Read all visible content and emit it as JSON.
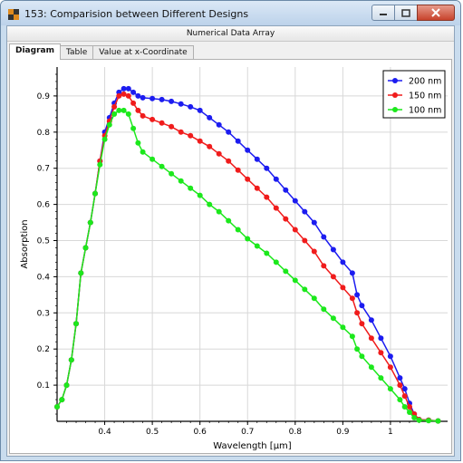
{
  "window": {
    "title": "153: Comparision between Different Designs"
  },
  "subheader": "Numerical Data Array",
  "tabs": [
    {
      "label": "Diagram"
    },
    {
      "label": "Table"
    },
    {
      "label": "Value at x-Coordinate"
    }
  ],
  "chart_data": {
    "type": "line",
    "title": "",
    "xlabel": "Wavelength [µm]",
    "ylabel": "Absorption",
    "xlim": [
      0.3,
      1.12
    ],
    "ylim": [
      0,
      0.98
    ],
    "xticks": [
      "0.4",
      "0.5",
      "0.6",
      "0.7",
      "0.8",
      "0.9",
      "1"
    ],
    "yticks": [
      "0.1",
      "0.2",
      "0.3",
      "0.4",
      "0.5",
      "0.6",
      "0.7",
      "0.8",
      "0.9"
    ],
    "grid": true,
    "legend": "top-right",
    "series": [
      {
        "name": "200 nm",
        "color": "#1c1cf0",
        "points": [
          [
            0.3,
            0.04
          ],
          [
            0.31,
            0.06
          ],
          [
            0.32,
            0.1
          ],
          [
            0.33,
            0.17
          ],
          [
            0.34,
            0.27
          ],
          [
            0.35,
            0.41
          ],
          [
            0.36,
            0.48
          ],
          [
            0.37,
            0.55
          ],
          [
            0.38,
            0.63
          ],
          [
            0.39,
            0.72
          ],
          [
            0.4,
            0.8
          ],
          [
            0.41,
            0.84
          ],
          [
            0.42,
            0.88
          ],
          [
            0.43,
            0.91
          ],
          [
            0.44,
            0.92
          ],
          [
            0.45,
            0.92
          ],
          [
            0.46,
            0.91
          ],
          [
            0.47,
            0.9
          ],
          [
            0.48,
            0.895
          ],
          [
            0.5,
            0.893
          ],
          [
            0.52,
            0.89
          ],
          [
            0.54,
            0.885
          ],
          [
            0.56,
            0.878
          ],
          [
            0.58,
            0.87
          ],
          [
            0.6,
            0.86
          ],
          [
            0.62,
            0.84
          ],
          [
            0.64,
            0.82
          ],
          [
            0.66,
            0.8
          ],
          [
            0.68,
            0.775
          ],
          [
            0.7,
            0.75
          ],
          [
            0.72,
            0.725
          ],
          [
            0.74,
            0.7
          ],
          [
            0.76,
            0.67
          ],
          [
            0.78,
            0.64
          ],
          [
            0.8,
            0.61
          ],
          [
            0.82,
            0.58
          ],
          [
            0.84,
            0.55
          ],
          [
            0.86,
            0.51
          ],
          [
            0.88,
            0.475
          ],
          [
            0.9,
            0.44
          ],
          [
            0.92,
            0.41
          ],
          [
            0.93,
            0.35
          ],
          [
            0.94,
            0.32
          ],
          [
            0.96,
            0.28
          ],
          [
            0.98,
            0.23
          ],
          [
            1.0,
            0.18
          ],
          [
            1.02,
            0.12
          ],
          [
            1.03,
            0.09
          ],
          [
            1.04,
            0.05
          ],
          [
            1.05,
            0.02
          ],
          [
            1.06,
            0.005
          ],
          [
            1.08,
            0.003
          ],
          [
            1.1,
            0.001
          ]
        ]
      },
      {
        "name": "150 nm",
        "color": "#f01c1c",
        "points": [
          [
            0.3,
            0.04
          ],
          [
            0.31,
            0.06
          ],
          [
            0.32,
            0.1
          ],
          [
            0.33,
            0.17
          ],
          [
            0.34,
            0.27
          ],
          [
            0.35,
            0.41
          ],
          [
            0.36,
            0.48
          ],
          [
            0.37,
            0.55
          ],
          [
            0.38,
            0.63
          ],
          [
            0.39,
            0.72
          ],
          [
            0.4,
            0.79
          ],
          [
            0.41,
            0.83
          ],
          [
            0.42,
            0.87
          ],
          [
            0.43,
            0.9
          ],
          [
            0.44,
            0.905
          ],
          [
            0.45,
            0.9
          ],
          [
            0.46,
            0.88
          ],
          [
            0.47,
            0.86
          ],
          [
            0.48,
            0.845
          ],
          [
            0.5,
            0.835
          ],
          [
            0.52,
            0.825
          ],
          [
            0.54,
            0.815
          ],
          [
            0.56,
            0.8
          ],
          [
            0.58,
            0.79
          ],
          [
            0.6,
            0.775
          ],
          [
            0.62,
            0.76
          ],
          [
            0.64,
            0.74
          ],
          [
            0.66,
            0.72
          ],
          [
            0.68,
            0.695
          ],
          [
            0.7,
            0.67
          ],
          [
            0.72,
            0.645
          ],
          [
            0.74,
            0.62
          ],
          [
            0.76,
            0.59
          ],
          [
            0.78,
            0.56
          ],
          [
            0.8,
            0.53
          ],
          [
            0.82,
            0.5
          ],
          [
            0.84,
            0.47
          ],
          [
            0.86,
            0.43
          ],
          [
            0.88,
            0.4
          ],
          [
            0.9,
            0.37
          ],
          [
            0.92,
            0.34
          ],
          [
            0.93,
            0.3
          ],
          [
            0.94,
            0.27
          ],
          [
            0.96,
            0.23
          ],
          [
            0.98,
            0.19
          ],
          [
            1.0,
            0.15
          ],
          [
            1.02,
            0.1
          ],
          [
            1.03,
            0.07
          ],
          [
            1.04,
            0.04
          ],
          [
            1.05,
            0.02
          ],
          [
            1.06,
            0.005
          ],
          [
            1.08,
            0.003
          ],
          [
            1.1,
            0.001
          ]
        ]
      },
      {
        "name": "100 nm",
        "color": "#1ce81c",
        "points": [
          [
            0.3,
            0.04
          ],
          [
            0.31,
            0.06
          ],
          [
            0.32,
            0.1
          ],
          [
            0.33,
            0.17
          ],
          [
            0.34,
            0.27
          ],
          [
            0.35,
            0.41
          ],
          [
            0.36,
            0.48
          ],
          [
            0.37,
            0.55
          ],
          [
            0.38,
            0.63
          ],
          [
            0.39,
            0.71
          ],
          [
            0.4,
            0.78
          ],
          [
            0.41,
            0.82
          ],
          [
            0.42,
            0.85
          ],
          [
            0.43,
            0.86
          ],
          [
            0.44,
            0.86
          ],
          [
            0.45,
            0.85
          ],
          [
            0.46,
            0.81
          ],
          [
            0.47,
            0.77
          ],
          [
            0.48,
            0.745
          ],
          [
            0.5,
            0.725
          ],
          [
            0.52,
            0.705
          ],
          [
            0.54,
            0.685
          ],
          [
            0.56,
            0.665
          ],
          [
            0.58,
            0.645
          ],
          [
            0.6,
            0.625
          ],
          [
            0.62,
            0.6
          ],
          [
            0.64,
            0.58
          ],
          [
            0.66,
            0.555
          ],
          [
            0.68,
            0.53
          ],
          [
            0.7,
            0.505
          ],
          [
            0.72,
            0.485
          ],
          [
            0.74,
            0.465
          ],
          [
            0.76,
            0.44
          ],
          [
            0.78,
            0.415
          ],
          [
            0.8,
            0.39
          ],
          [
            0.82,
            0.365
          ],
          [
            0.84,
            0.34
          ],
          [
            0.86,
            0.31
          ],
          [
            0.88,
            0.285
          ],
          [
            0.9,
            0.26
          ],
          [
            0.92,
            0.235
          ],
          [
            0.93,
            0.2
          ],
          [
            0.94,
            0.18
          ],
          [
            0.96,
            0.15
          ],
          [
            0.98,
            0.12
          ],
          [
            1.0,
            0.09
          ],
          [
            1.02,
            0.06
          ],
          [
            1.03,
            0.04
          ],
          [
            1.04,
            0.025
          ],
          [
            1.05,
            0.01
          ],
          [
            1.06,
            0.003
          ],
          [
            1.08,
            0.002
          ],
          [
            1.1,
            0.001
          ]
        ]
      }
    ]
  }
}
